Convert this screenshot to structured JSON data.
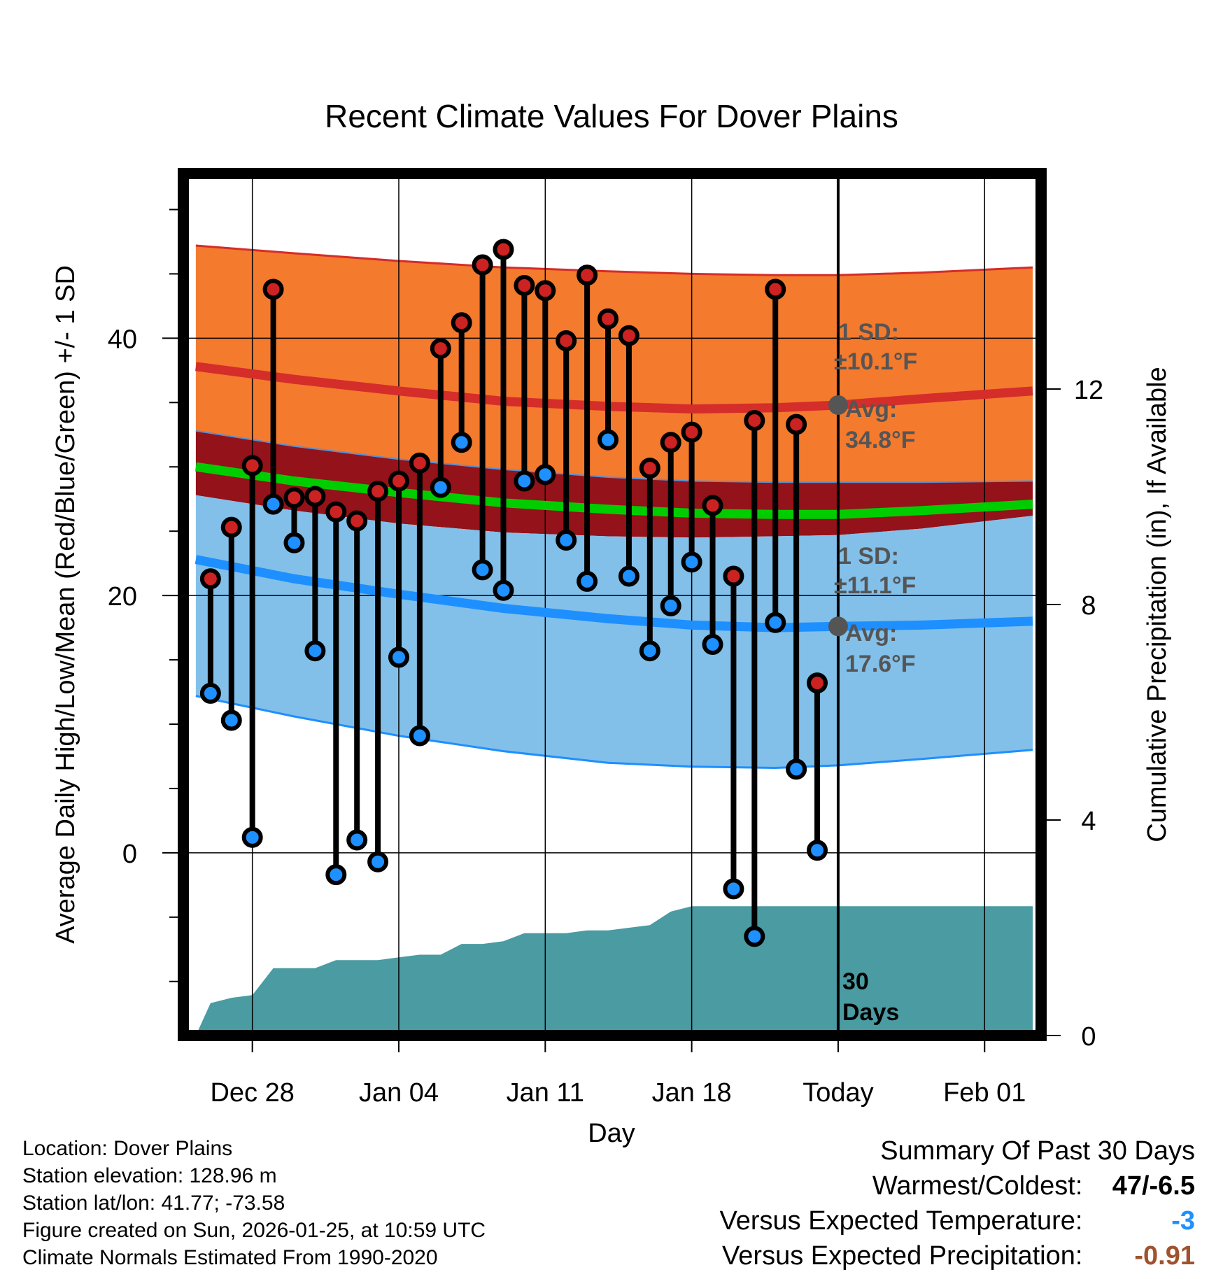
{
  "chart_data": {
    "type": "line",
    "title": "Recent Climate Values For Dover Plains",
    "xlabel": "Day",
    "ylabel_left": "Average Daily High/Low/Mean (Red/Blue/Green) +/- 1 SD",
    "ylabel_right": "Cumulative Precipitation (in), If Available",
    "xlim": [
      -3.3,
      37.7
    ],
    "ylim_left": [
      -14.2,
      52.8
    ],
    "ylim_right": [
      0,
      16
    ],
    "x_ticks": [
      {
        "x": 0,
        "label": "Dec 28"
      },
      {
        "x": 7,
        "label": "Jan 04"
      },
      {
        "x": 14,
        "label": "Jan 11"
      },
      {
        "x": 21,
        "label": "Jan 18"
      },
      {
        "x": 28,
        "label": "Today"
      },
      {
        "x": 35,
        "label": "Feb 01"
      }
    ],
    "y_ticks_left": [
      0,
      20,
      40
    ],
    "y_ticks_right": [
      0,
      4,
      8,
      12
    ],
    "today_x": 28,
    "normals_x": [
      -2.7,
      2,
      7,
      12,
      17,
      21,
      25,
      28,
      32,
      37.3
    ],
    "normal_high_avg": [
      37.8,
      36.8,
      35.9,
      35.1,
      34.7,
      34.5,
      34.6,
      34.8,
      35.3,
      35.9
    ],
    "normal_high_upper": [
      47.2,
      46.6,
      46,
      45.5,
      45.2,
      45,
      44.9,
      44.9,
      45.1,
      45.5
    ],
    "normal_high_lower": [
      32.8,
      31.6,
      30.6,
      29.8,
      29.2,
      28.9,
      28.8,
      28.8,
      28.8,
      28.9
    ],
    "normal_mean_avg": [
      30,
      28.9,
      28,
      27.2,
      26.7,
      26.4,
      26.3,
      26.3,
      26.6,
      27.1
    ],
    "normal_mean_lower": [
      27.8,
      26.6,
      25.6,
      24.9,
      24.6,
      24.5,
      24.6,
      24.7,
      25.2,
      26.2
    ],
    "normal_low_avg": [
      22.8,
      21.3,
      20.1,
      19,
      18.2,
      17.7,
      17.5,
      17.6,
      17.7,
      18
    ],
    "normal_low_upper": [
      27.8,
      26.6,
      25.6,
      24.9,
      24.6,
      24.5,
      24.6,
      24.7,
      25.2,
      26.2
    ],
    "normal_low_lower": [
      12.2,
      10.6,
      9.1,
      7.9,
      7,
      6.7,
      6.6,
      6.8,
      7.3,
      8
    ],
    "days_x": [
      -2,
      -1,
      0,
      1,
      2,
      3,
      4,
      5,
      6,
      7,
      8,
      9,
      10,
      11,
      12,
      13,
      14,
      15,
      16,
      17,
      18,
      19,
      20,
      21,
      22,
      23,
      24,
      25,
      26,
      27
    ],
    "daily_high": [
      21.3,
      25.3,
      30.1,
      43.8,
      27.6,
      27.7,
      26.5,
      25.8,
      28.1,
      28.9,
      30.3,
      39.2,
      41.2,
      45.7,
      46.9,
      44.1,
      43.7,
      39.8,
      44.9,
      41.5,
      40.2,
      29.9,
      31.9,
      32.7,
      27,
      21.5,
      33.6,
      43.8,
      33.3,
      13.2
    ],
    "daily_low": [
      12.4,
      10.3,
      1.2,
      27.1,
      24.1,
      15.7,
      -1.7,
      1,
      -0.7,
      15.2,
      9.1,
      28.4,
      31.9,
      22,
      20.4,
      28.9,
      29.4,
      24.3,
      21.1,
      32.1,
      21.5,
      15.7,
      19.2,
      22.6,
      16.2,
      -2.8,
      -6.5,
      17.9,
      6.5,
      0.2
    ],
    "precip_x": [
      -2.7,
      -2,
      -1,
      0,
      1,
      2,
      3,
      4,
      5,
      6,
      7,
      8,
      9,
      10,
      11,
      12,
      13,
      14,
      15,
      16,
      17,
      18,
      19,
      20,
      21,
      28,
      37.3
    ],
    "precip_cum": [
      0,
      0.6,
      0.7,
      0.75,
      1.25,
      1.25,
      1.25,
      1.4,
      1.4,
      1.4,
      1.45,
      1.5,
      1.5,
      1.7,
      1.7,
      1.75,
      1.9,
      1.9,
      1.9,
      1.95,
      1.95,
      2.0,
      2.05,
      2.3,
      2.4,
      2.4,
      2.4
    ],
    "high_sd_label": "1 SD:",
    "high_sd_value": "±10.1°F",
    "high_avg_label": "Avg:",
    "high_avg_value": "34.8°F",
    "low_sd_label": "1 SD:",
    "low_sd_value": "±11.1°F",
    "low_avg_label": "Avg:",
    "low_avg_value": "17.6°F",
    "days_note_1": "30",
    "days_note_2": "Days"
  },
  "colors": {
    "high_band": "#F47A2E",
    "high_line": "#D42D2A",
    "mean_band": "#941219",
    "mean_line": "#00CD00",
    "low_band": "#82C0E9",
    "low_line": "#1E8FFF",
    "precip": "#4A9BA2",
    "high_dot": "#CC2222",
    "low_dot": "#1E90FF",
    "annot": "#555555",
    "cooler": "#1E90FF",
    "drier": "#A0522D"
  },
  "meta": {
    "location": "Location: Dover Plains",
    "elevation": "Station elevation: 128.96 m",
    "latlon": "Station lat/lon: 41.77; -73.58",
    "created": "Figure created on Sun, 2026-01-25, at 10:59 UTC",
    "normals": "Climate Normals Estimated From 1990-2020"
  },
  "summary": {
    "heading": "Summary Of Past 30 Days",
    "warm_cold_label": "Warmest/Coldest:",
    "warm_cold_value": "47/-6.5",
    "temp_label": "Versus Expected Temperature:",
    "temp_value": "-3",
    "precip_label": "Versus Expected Precipitation:",
    "precip_value": "-0.91"
  }
}
